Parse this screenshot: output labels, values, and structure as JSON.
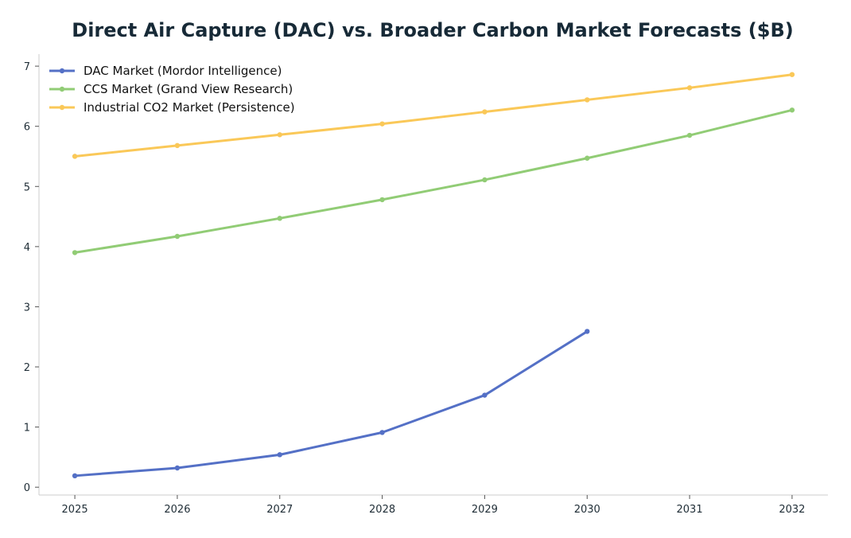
{
  "chart_data": {
    "type": "line",
    "title": "Direct Air Capture (DAC) vs. Broader Carbon Market Forecasts ($B)",
    "xlabel": "",
    "ylabel": "",
    "x": [
      2025,
      2026,
      2027,
      2028,
      2029,
      2030,
      2031,
      2032
    ],
    "xlim": [
      2024.65,
      2032.35
    ],
    "ylim": [
      -0.13,
      7.2
    ],
    "yticks": [
      0,
      1,
      2,
      3,
      4,
      5,
      6,
      7
    ],
    "grid": false,
    "legend_position": "top-left",
    "series": [
      {
        "name": "DAC Market (Mordor Intelligence)",
        "color": "#5470c6",
        "values": [
          0.19,
          0.32,
          0.54,
          0.91,
          1.53,
          2.59,
          null,
          null
        ]
      },
      {
        "name": "CCS Market (Grand View Research)",
        "color": "#91cc75",
        "values": [
          3.9,
          4.17,
          4.47,
          4.78,
          5.11,
          5.47,
          5.85,
          6.27
        ]
      },
      {
        "name": "Industrial CO2 Market (Persistence)",
        "color": "#fac858",
        "values": [
          5.5,
          5.68,
          5.86,
          6.04,
          6.24,
          6.44,
          6.64,
          6.86
        ]
      }
    ]
  }
}
